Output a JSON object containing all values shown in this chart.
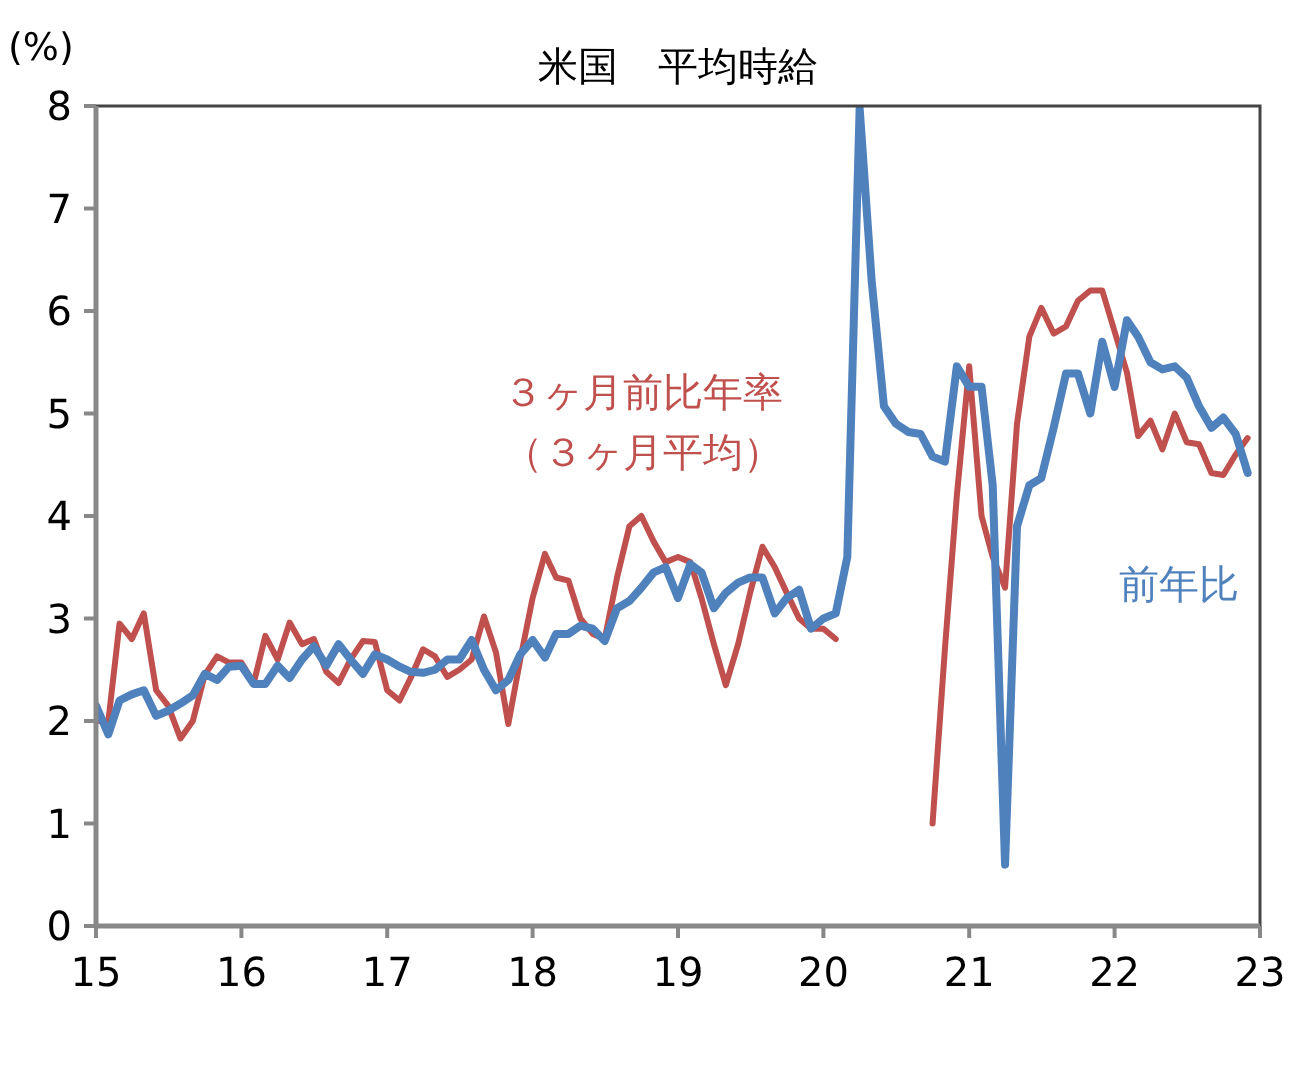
{
  "chart_data": {
    "type": "line",
    "title": "米国　平均時給",
    "ylabel": "(%)",
    "grid": false,
    "marker": "none",
    "line_style": "solid",
    "x": [
      "2015-01",
      "2015-02",
      "2015-03",
      "2015-04",
      "2015-05",
      "2015-06",
      "2015-07",
      "2015-08",
      "2015-09",
      "2015-10",
      "2015-11",
      "2015-12",
      "2016-01",
      "2016-02",
      "2016-03",
      "2016-04",
      "2016-05",
      "2016-06",
      "2016-07",
      "2016-08",
      "2016-09",
      "2016-10",
      "2016-11",
      "2016-12",
      "2017-01",
      "2017-02",
      "2017-03",
      "2017-04",
      "2017-05",
      "2017-06",
      "2017-07",
      "2017-08",
      "2017-09",
      "2017-10",
      "2017-11",
      "2017-12",
      "2018-01",
      "2018-02",
      "2018-03",
      "2018-04",
      "2018-05",
      "2018-06",
      "2018-07",
      "2018-08",
      "2018-09",
      "2018-10",
      "2018-11",
      "2018-12",
      "2019-01",
      "2019-02",
      "2019-03",
      "2019-04",
      "2019-05",
      "2019-06",
      "2019-07",
      "2019-08",
      "2019-09",
      "2019-10",
      "2019-11",
      "2019-12",
      "2020-01",
      "2020-02",
      "2020-03",
      "2020-04",
      "2020-05",
      "2020-06",
      "2020-07",
      "2020-08",
      "2020-09",
      "2020-10",
      "2020-11",
      "2020-12",
      "2021-01",
      "2021-02",
      "2021-03",
      "2021-04",
      "2021-05",
      "2021-06",
      "2021-07",
      "2021-08",
      "2021-09",
      "2021-10",
      "2021-11",
      "2021-12",
      "2022-01",
      "2022-02",
      "2022-03",
      "2022-04",
      "2022-05",
      "2022-06",
      "2022-07",
      "2022-08",
      "2022-09",
      "2022-10",
      "2022-11",
      "2022-12"
    ],
    "series": [
      {
        "name": "３ヶ月前比年率（３ヶ月平均）",
        "color": "#c0504d",
        "values": [
          2.0,
          2.0,
          2.95,
          2.8,
          3.05,
          2.3,
          2.15,
          1.83,
          2.0,
          2.45,
          2.63,
          2.57,
          2.57,
          2.37,
          2.83,
          2.6,
          2.96,
          2.75,
          2.8,
          2.48,
          2.37,
          2.6,
          2.78,
          2.77,
          2.3,
          2.2,
          2.42,
          2.7,
          2.63,
          2.43,
          2.5,
          2.6,
          3.02,
          2.67,
          1.97,
          2.6,
          3.2,
          3.63,
          3.4,
          3.37,
          3.0,
          2.85,
          2.8,
          3.4,
          3.9,
          4.0,
          3.75,
          3.55,
          3.6,
          3.55,
          3.2,
          2.75,
          2.35,
          2.75,
          3.25,
          3.7,
          3.5,
          3.25,
          3.0,
          2.9,
          2.9,
          2.8,
          null,
          null,
          null,
          null,
          null,
          null,
          null,
          1.0,
          2.7,
          4.2,
          5.46,
          4.0,
          3.6,
          3.3,
          4.9,
          5.75,
          6.03,
          5.78,
          5.85,
          6.1,
          6.2,
          6.2,
          5.8,
          5.4,
          4.78,
          4.93,
          4.65,
          5.0,
          4.72,
          4.7,
          4.42,
          4.4,
          4.6,
          4.76
        ]
      },
      {
        "name": "前年比",
        "color": "#4f81bd",
        "values": [
          2.15,
          1.87,
          2.2,
          2.26,
          2.3,
          2.05,
          2.1,
          2.17,
          2.25,
          2.46,
          2.4,
          2.53,
          2.54,
          2.36,
          2.36,
          2.54,
          2.42,
          2.6,
          2.73,
          2.54,
          2.75,
          2.6,
          2.46,
          2.65,
          2.6,
          2.53,
          2.48,
          2.47,
          2.5,
          2.6,
          2.6,
          2.79,
          2.5,
          2.3,
          2.4,
          2.65,
          2.79,
          2.62,
          2.85,
          2.85,
          2.93,
          2.9,
          2.78,
          3.1,
          3.17,
          3.3,
          3.45,
          3.5,
          3.2,
          3.53,
          3.45,
          3.1,
          3.25,
          3.35,
          3.4,
          3.4,
          3.05,
          3.2,
          3.28,
          2.9,
          3.0,
          3.05,
          3.6,
          7.98,
          6.3,
          5.07,
          4.9,
          4.82,
          4.8,
          4.58,
          4.53,
          5.46,
          5.26,
          5.26,
          4.3,
          0.6,
          3.9,
          4.3,
          4.37,
          4.86,
          5.39,
          5.39,
          5.0,
          5.7,
          5.26,
          5.91,
          5.75,
          5.5,
          5.43,
          5.46,
          5.35,
          5.07,
          4.86,
          4.96,
          4.8,
          4.42
        ]
      }
    ],
    "xlim": [
      "2015-01",
      "2023-01"
    ],
    "xticks": [
      {
        "value": "2015-01",
        "label": "15"
      },
      {
        "value": "2016-01",
        "label": "16"
      },
      {
        "value": "2017-01",
        "label": "17"
      },
      {
        "value": "2018-01",
        "label": "18"
      },
      {
        "value": "2019-01",
        "label": "19"
      },
      {
        "value": "2020-01",
        "label": "20"
      },
      {
        "value": "2021-01",
        "label": "21"
      },
      {
        "value": "2022-01",
        "label": "22"
      },
      {
        "value": "2023-01",
        "label": "23"
      }
    ],
    "ylim": [
      0,
      8
    ],
    "yticks": [
      0,
      1,
      2,
      3,
      4,
      5,
      6,
      7,
      8
    ]
  }
}
